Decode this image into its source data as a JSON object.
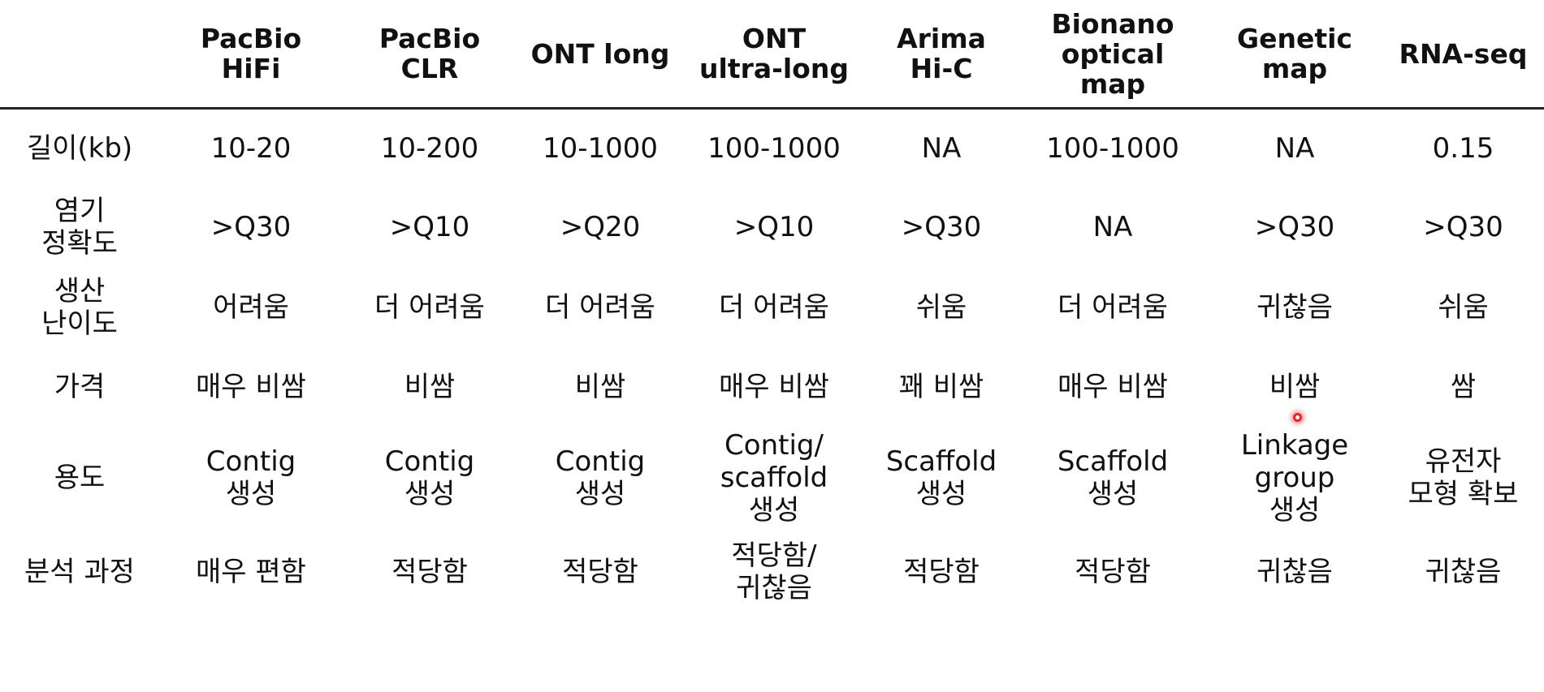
{
  "header": {
    "corner": "",
    "columns": [
      [
        "PacBio",
        "HiFi"
      ],
      [
        "PacBio",
        "CLR"
      ],
      [
        "ONT long"
      ],
      [
        "ONT",
        "ultra-long"
      ],
      [
        "Arima",
        "Hi-C"
      ],
      [
        "Bionano",
        "optical",
        "map"
      ],
      [
        "Genetic",
        "map"
      ],
      [
        "RNA-seq"
      ]
    ]
  },
  "rows": [
    {
      "label": [
        "길이(kb)"
      ],
      "cells": [
        [
          "10-20"
        ],
        [
          "10-200"
        ],
        [
          "10-1000"
        ],
        [
          "100-1000"
        ],
        [
          "NA"
        ],
        [
          "100-1000"
        ],
        [
          "NA"
        ],
        [
          "0.15"
        ]
      ]
    },
    {
      "label": [
        "염기",
        "정확도"
      ],
      "cells": [
        [
          ">Q30"
        ],
        [
          ">Q10"
        ],
        [
          ">Q20"
        ],
        [
          ">Q10"
        ],
        [
          ">Q30"
        ],
        [
          "NA"
        ],
        [
          ">Q30"
        ],
        [
          ">Q30"
        ]
      ]
    },
    {
      "label": [
        "생산",
        "난이도"
      ],
      "cells": [
        [
          "어려움"
        ],
        [
          "더 어려움"
        ],
        [
          "더 어려움"
        ],
        [
          "더 어려움"
        ],
        [
          "쉬움"
        ],
        [
          "더 어려움"
        ],
        [
          "귀찮음"
        ],
        [
          "쉬움"
        ]
      ]
    },
    {
      "label": [
        "가격"
      ],
      "cells": [
        [
          "매우 비쌈"
        ],
        [
          "비쌈"
        ],
        [
          "비쌈"
        ],
        [
          "매우 비쌈"
        ],
        [
          "꽤 비쌈"
        ],
        [
          "매우 비쌈"
        ],
        [
          "비쌈"
        ],
        [
          "쌈"
        ]
      ]
    },
    {
      "label": [
        "용도"
      ],
      "cells": [
        [
          "Contig",
          "생성"
        ],
        [
          "Contig",
          "생성"
        ],
        [
          "Contig",
          "생성"
        ],
        [
          "Contig/",
          "scaffold",
          "생성"
        ],
        [
          "Scaffold",
          "생성"
        ],
        [
          "Scaffold",
          "생성"
        ],
        [
          "Linkage",
          "group",
          "생성"
        ],
        [
          "유전자",
          "모형 확보"
        ]
      ]
    },
    {
      "label": [
        "분석 과정"
      ],
      "cells": [
        [
          "매우 편함"
        ],
        [
          "적당함"
        ],
        [
          "적당함"
        ],
        [
          "적당함/",
          "귀찮음"
        ],
        [
          "적당함"
        ],
        [
          "적당함"
        ],
        [
          "귀찮음"
        ],
        [
          "귀찮음"
        ]
      ]
    }
  ]
}
